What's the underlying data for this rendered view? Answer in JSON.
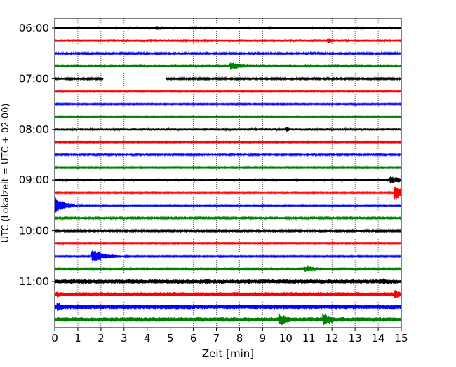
{
  "chart_data": {
    "type": "line",
    "title": "",
    "xlabel": "Zeit  [min]",
    "ylabel": "UTC (Lokalzeit = UTC + 02:00)",
    "xlim": [
      0,
      15
    ],
    "x_ticks": [
      0,
      1,
      2,
      3,
      4,
      5,
      6,
      7,
      8,
      9,
      10,
      11,
      12,
      13,
      14,
      15
    ],
    "x_tick_labels": [
      "0",
      "1",
      "2",
      "3",
      "4",
      "5",
      "6",
      "7",
      "8",
      "9",
      "10",
      "11",
      "12",
      "13",
      "14",
      "15"
    ],
    "grid": "vertical dotted lines at each minute",
    "legend": "none",
    "color_cycle": [
      "#000000",
      "#ff0000",
      "#0000ff",
      "#008000"
    ],
    "y_tick_labels": [
      {
        "row": 0,
        "label": "06:00"
      },
      {
        "row": 4,
        "label": "07:00"
      },
      {
        "row": 8,
        "label": "08:00"
      },
      {
        "row": 12,
        "label": "09:00"
      },
      {
        "row": 16,
        "label": "10:00"
      },
      {
        "row": 20,
        "label": "11:00"
      }
    ],
    "series": [
      {
        "start": "06:00",
        "color": "#000000",
        "noise": 0.25,
        "events": [
          {
            "t": 4.4,
            "amp": 0.55,
            "dur": 1.2
          }
        ]
      },
      {
        "start": "06:15",
        "color": "#ff0000",
        "noise": 0.25,
        "events": [
          {
            "t": 11.8,
            "amp": 0.7,
            "dur": 0.5
          }
        ]
      },
      {
        "start": "06:30",
        "color": "#0000ff",
        "noise": 0.2,
        "events": []
      },
      {
        "start": "06:45",
        "color": "#008000",
        "noise": 0.25,
        "events": [
          {
            "t": 7.6,
            "amp": 0.9,
            "dur": 1.2
          }
        ]
      },
      {
        "start": "07:00",
        "color": "#000000",
        "noise": 0.2,
        "gap": [
          2.1,
          4.8
        ],
        "events": [
          {
            "t": 12.2,
            "amp": 0.4,
            "dur": 0.4
          }
        ]
      },
      {
        "start": "07:15",
        "color": "#ff0000",
        "noise": 0.15,
        "events": []
      },
      {
        "start": "07:30",
        "color": "#0000ff",
        "noise": 0.15,
        "events": [
          {
            "t": 12.3,
            "amp": 0.4,
            "dur": 0.3
          },
          {
            "t": 13.0,
            "amp": 0.35,
            "dur": 0.2
          }
        ]
      },
      {
        "start": "07:45",
        "color": "#008000",
        "noise": 0.15,
        "events": []
      },
      {
        "start": "08:00",
        "color": "#000000",
        "noise": 0.25,
        "events": [
          {
            "t": 8.7,
            "amp": 0.4,
            "dur": 0.2
          },
          {
            "t": 10.0,
            "amp": 0.7,
            "dur": 0.3
          },
          {
            "t": 12.8,
            "amp": 0.4,
            "dur": 0.2
          }
        ]
      },
      {
        "start": "08:15",
        "color": "#ff0000",
        "noise": 0.15,
        "events": []
      },
      {
        "start": "08:30",
        "color": "#0000ff",
        "noise": 0.2,
        "events": []
      },
      {
        "start": "08:45",
        "color": "#008000",
        "noise": 0.15,
        "events": []
      },
      {
        "start": "09:00",
        "color": "#000000",
        "noise": 0.25,
        "events": [
          {
            "t": 14.5,
            "amp": 0.9,
            "dur": 1.2
          }
        ]
      },
      {
        "start": "09:15",
        "color": "#ff0000",
        "noise": 0.15,
        "events": [
          {
            "t": 14.7,
            "amp": 1.8,
            "dur": 1.0
          }
        ]
      },
      {
        "start": "09:30",
        "color": "#0000ff",
        "noise": 0.15,
        "events": [
          {
            "t": 0.0,
            "amp": 2.0,
            "dur": 0.8
          }
        ]
      },
      {
        "start": "09:45",
        "color": "#008000",
        "noise": 0.2,
        "events": []
      },
      {
        "start": "10:00",
        "color": "#000000",
        "noise": 0.2,
        "events": [
          {
            "t": 5.7,
            "amp": 0.4,
            "dur": 0.2
          }
        ]
      },
      {
        "start": "10:15",
        "color": "#ff0000",
        "noise": 0.15,
        "events": [
          {
            "t": 4.6,
            "amp": 0.3,
            "dur": 0.15
          }
        ]
      },
      {
        "start": "10:30",
        "color": "#0000ff",
        "noise": 0.15,
        "events": [
          {
            "t": 1.6,
            "amp": 1.5,
            "dur": 1.2
          }
        ]
      },
      {
        "start": "10:45",
        "color": "#008000",
        "noise": 0.2,
        "events": [
          {
            "t": 10.8,
            "amp": 0.8,
            "dur": 1.6
          }
        ]
      },
      {
        "start": "11:00",
        "color": "#000000",
        "noise": 0.45,
        "events": [
          {
            "t": 1.3,
            "amp": 0.7,
            "dur": 0.3
          },
          {
            "t": 2.8,
            "amp": 0.6,
            "dur": 0.3
          },
          {
            "t": 6.5,
            "amp": 0.6,
            "dur": 0.3
          },
          {
            "t": 9.2,
            "amp": 0.5,
            "dur": 0.3
          },
          {
            "t": 14.2,
            "amp": 0.8,
            "dur": 0.6
          }
        ]
      },
      {
        "start": "11:15",
        "color": "#ff0000",
        "noise": 0.45,
        "events": [
          {
            "t": 0.1,
            "amp": 0.8,
            "dur": 0.4
          },
          {
            "t": 14.7,
            "amp": 1.3,
            "dur": 0.5
          }
        ]
      },
      {
        "start": "11:30",
        "color": "#0000ff",
        "noise": 0.5,
        "events": [
          {
            "t": 0.1,
            "amp": 1.2,
            "dur": 0.6
          }
        ]
      },
      {
        "start": "11:45",
        "color": "#008000",
        "noise": 0.5,
        "events": [
          {
            "t": 9.7,
            "amp": 1.7,
            "dur": 0.7
          },
          {
            "t": 11.6,
            "amp": 1.6,
            "dur": 0.8
          }
        ]
      }
    ]
  }
}
